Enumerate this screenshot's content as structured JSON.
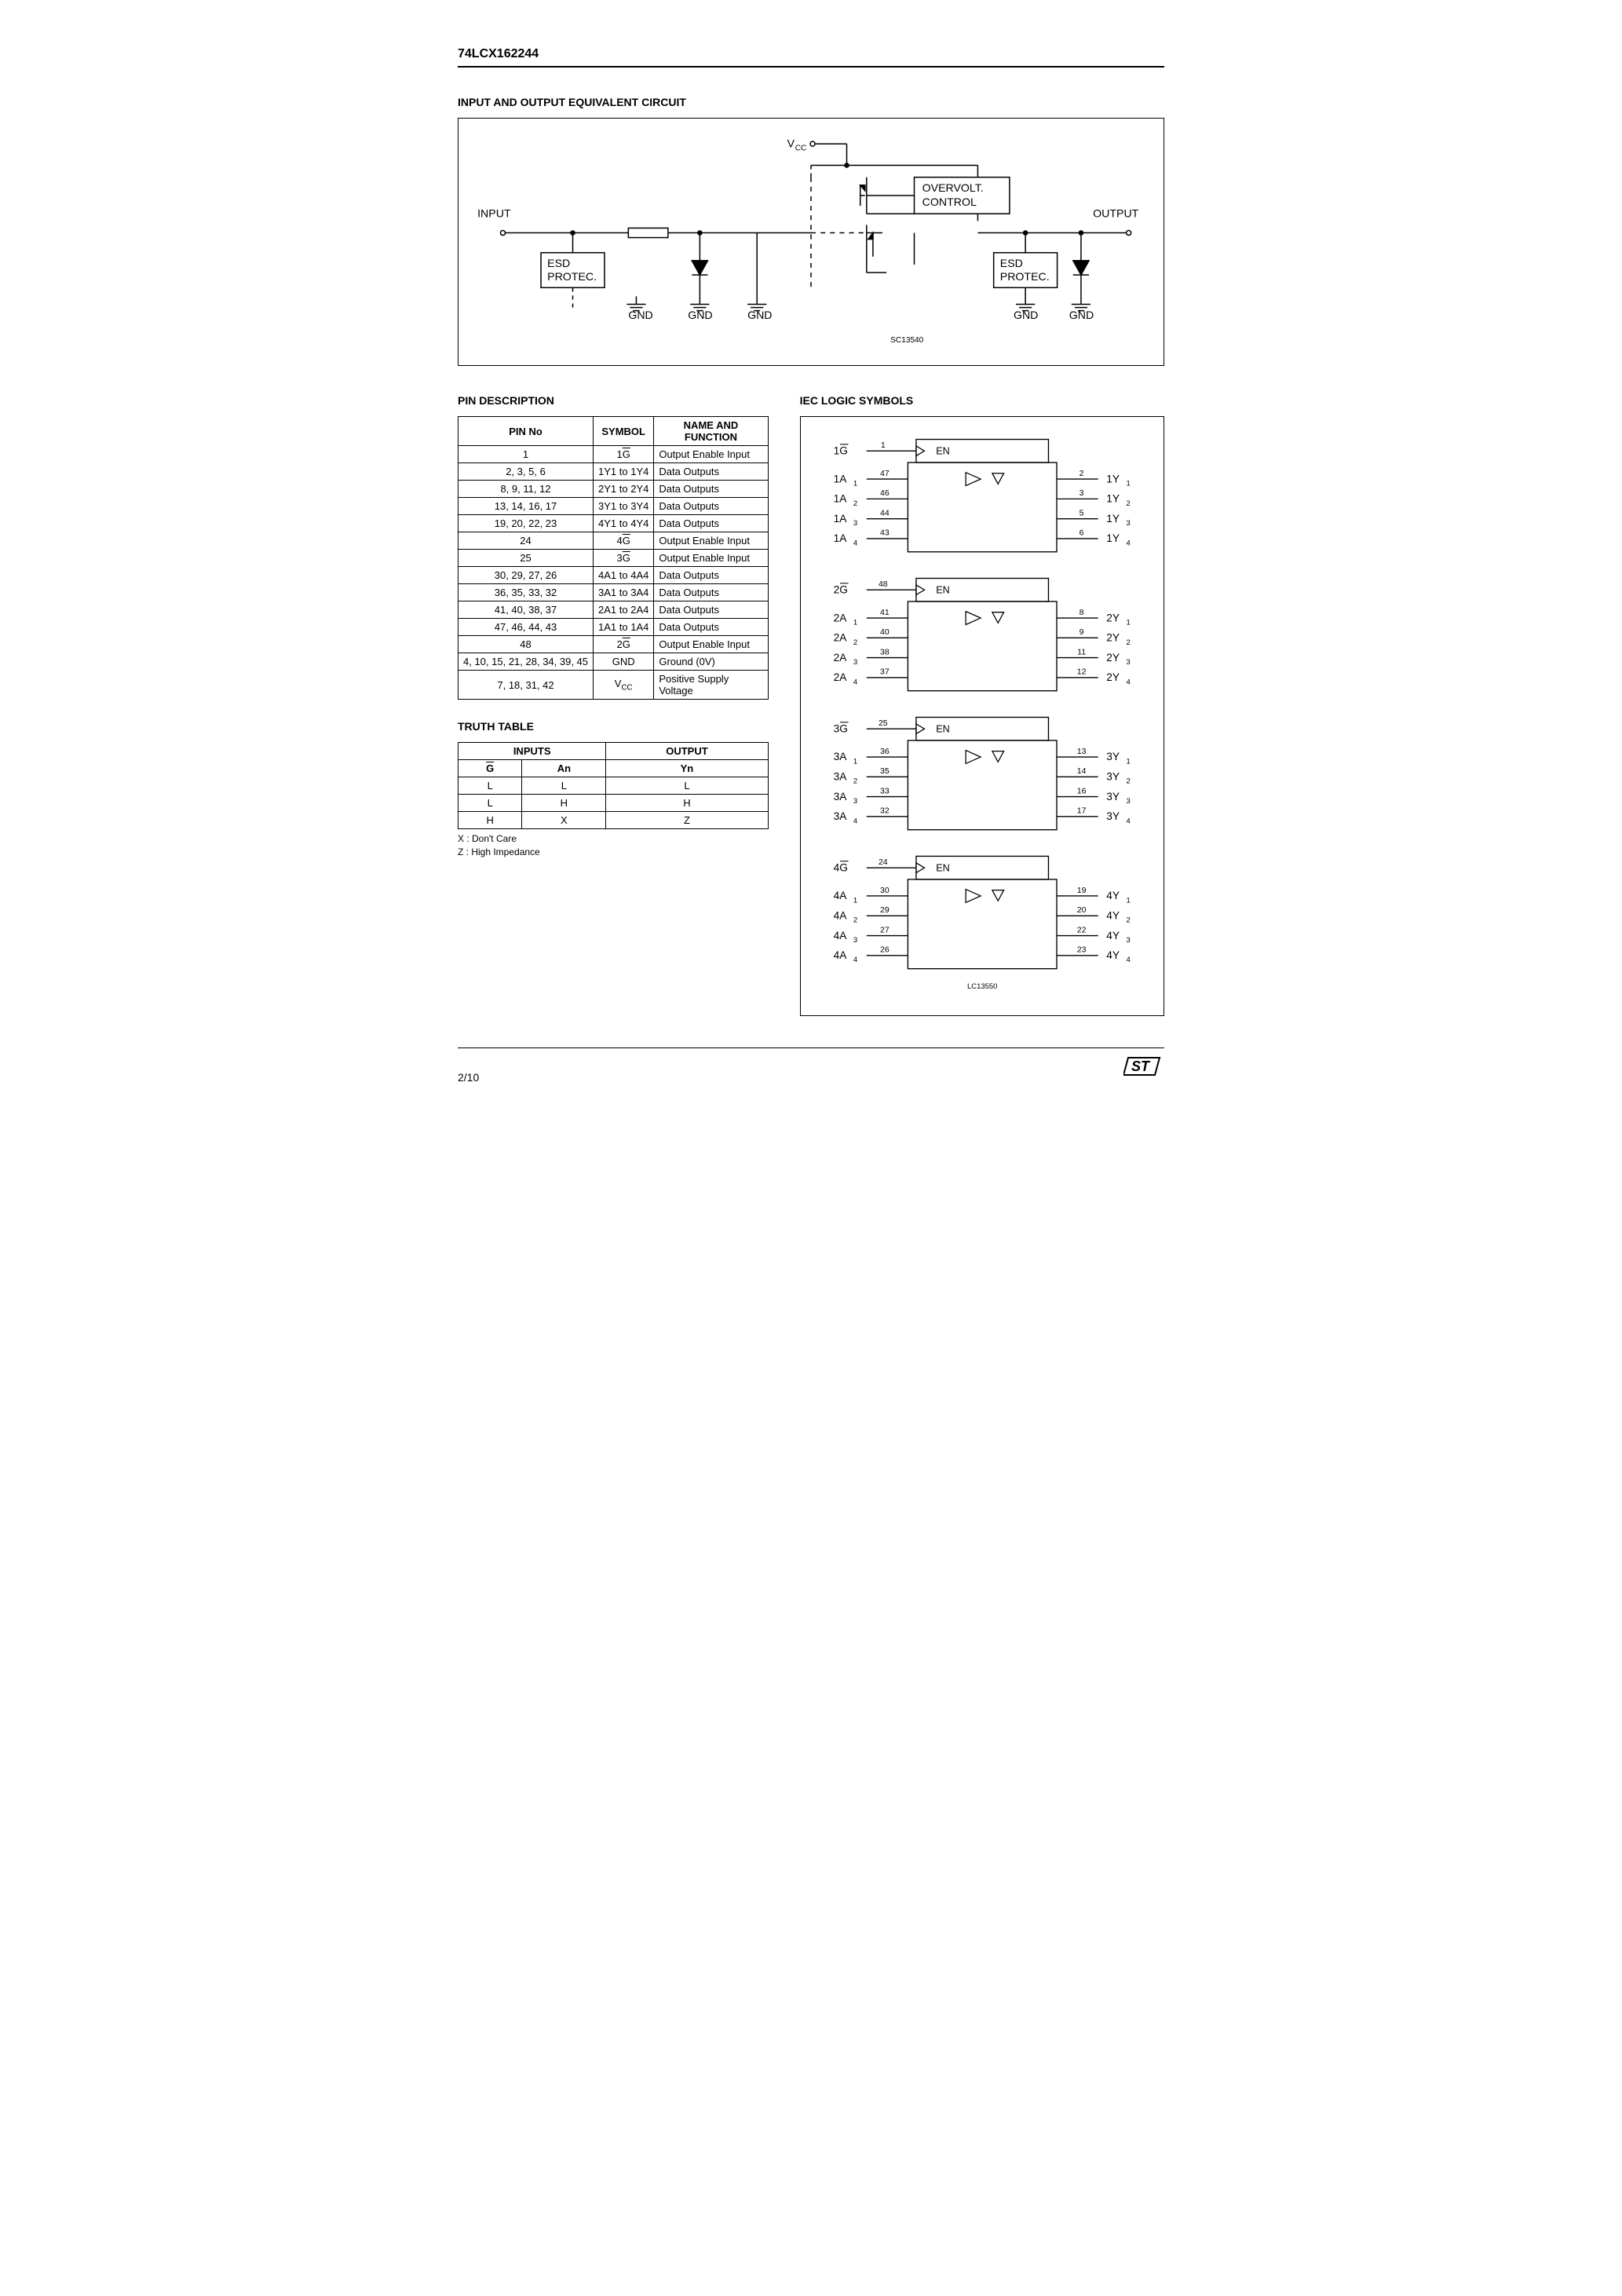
{
  "part_number": "74LCX162244",
  "sections": {
    "circuit": "INPUT AND OUTPUT EQUIVALENT CIRCUIT",
    "pin_desc": "PIN DESCRIPTION",
    "iec": "IEC LOGIC SYMBOLS",
    "truth": "TRUTH TABLE"
  },
  "circuit_labels": {
    "vcc": "V",
    "vcc_sub": "CC",
    "ovc": "OVERVOLT.\nCONTROL",
    "input": "INPUT",
    "output": "OUTPUT",
    "esd": "ESD\nPROTEC.",
    "gnd": "GND",
    "sc": "SC13540"
  },
  "pin_table": {
    "headers": [
      "PIN No",
      "SYMBOL",
      "NAME AND FUNCTION"
    ],
    "rows": [
      {
        "pin": "1",
        "sym_html": "1<span class=\"ovl\">G</span>",
        "func": "Output Enable Input"
      },
      {
        "pin": "2, 3, 5, 6",
        "sym_html": "1Y1 to 1Y4",
        "func": "Data Outputs"
      },
      {
        "pin": "8, 9, 11, 12",
        "sym_html": "2Y1 to 2Y4",
        "func": "Data Outputs"
      },
      {
        "pin": "13, 14, 16, 17",
        "sym_html": "3Y1 to 3Y4",
        "func": "Data Outputs"
      },
      {
        "pin": "19, 20, 22, 23",
        "sym_html": "4Y1 to 4Y4",
        "func": "Data Outputs"
      },
      {
        "pin": "24",
        "sym_html": "4<span class=\"ovl\">G</span>",
        "func": "Output Enable Input"
      },
      {
        "pin": "25",
        "sym_html": "3<span class=\"ovl\">G</span>",
        "func": "Output Enable Input"
      },
      {
        "pin": "30, 29, 27, 26",
        "sym_html": "4A1 to 4A4",
        "func": "Data Outputs"
      },
      {
        "pin": "36, 35, 33, 32",
        "sym_html": "3A1 to 3A4",
        "func": "Data Outputs"
      },
      {
        "pin": "41, 40, 38, 37",
        "sym_html": "2A1 to 2A4",
        "func": "Data Outputs"
      },
      {
        "pin": "47, 46, 44, 43",
        "sym_html": "1A1 to 1A4",
        "func": "Data Outputs"
      },
      {
        "pin": "48",
        "sym_html": "2<span class=\"ovl\">G</span>",
        "func": "Output Enable Input"
      },
      {
        "pin": "4, 10, 15, 21, 28, 34, 39, 45",
        "sym_html": "GND",
        "func": "Ground (0V)"
      },
      {
        "pin": "7, 18, 31, 42",
        "sym_html": "V<sub>CC</sub>",
        "func": "Positive Supply Voltage"
      }
    ]
  },
  "truth_table": {
    "top_headers": [
      "INPUTS",
      "OUTPUT"
    ],
    "sub_headers_html": [
      "<span class=\"ovl\">G</span>",
      "An",
      "Yn"
    ],
    "rows": [
      [
        "L",
        "L",
        "L"
      ],
      [
        "L",
        "H",
        "H"
      ],
      [
        "H",
        "X",
        "Z"
      ]
    ],
    "notes": [
      "X : Don't Care",
      "Z : High Impedance"
    ]
  },
  "iec": {
    "en_label": "EN",
    "lc": "LC13550",
    "blocks": [
      {
        "g_html": "1<span class=\"ovl\">G</span>",
        "g_pin": "1",
        "a": [
          {
            "l": "1A",
            "s": "1",
            "p": "47"
          },
          {
            "l": "1A",
            "s": "2",
            "p": "46"
          },
          {
            "l": "1A",
            "s": "3",
            "p": "44"
          },
          {
            "l": "1A",
            "s": "4",
            "p": "43"
          }
        ],
        "y": [
          {
            "l": "1Y",
            "s": "1",
            "p": "2"
          },
          {
            "l": "1Y",
            "s": "2",
            "p": "3"
          },
          {
            "l": "1Y",
            "s": "3",
            "p": "5"
          },
          {
            "l": "1Y",
            "s": "4",
            "p": "6"
          }
        ]
      },
      {
        "g_html": "2<span class=\"ovl\">G</span>",
        "g_pin": "48",
        "a": [
          {
            "l": "2A",
            "s": "1",
            "p": "41"
          },
          {
            "l": "2A",
            "s": "2",
            "p": "40"
          },
          {
            "l": "2A",
            "s": "3",
            "p": "38"
          },
          {
            "l": "2A",
            "s": "4",
            "p": "37"
          }
        ],
        "y": [
          {
            "l": "2Y",
            "s": "1",
            "p": "8"
          },
          {
            "l": "2Y",
            "s": "2",
            "p": "9"
          },
          {
            "l": "2Y",
            "s": "3",
            "p": "11"
          },
          {
            "l": "2Y",
            "s": "4",
            "p": "12"
          }
        ]
      },
      {
        "g_html": "3<span class=\"ovl\">G</span>",
        "g_pin": "25",
        "a": [
          {
            "l": "3A",
            "s": "1",
            "p": "36"
          },
          {
            "l": "3A",
            "s": "2",
            "p": "35"
          },
          {
            "l": "3A",
            "s": "3",
            "p": "33"
          },
          {
            "l": "3A",
            "s": "4",
            "p": "32"
          }
        ],
        "y": [
          {
            "l": "3Y",
            "s": "1",
            "p": "13"
          },
          {
            "l": "3Y",
            "s": "2",
            "p": "14"
          },
          {
            "l": "3Y",
            "s": "3",
            "p": "16"
          },
          {
            "l": "3Y",
            "s": "4",
            "p": "17"
          }
        ]
      },
      {
        "g_html": "4<span class=\"ovl\">G</span>",
        "g_pin": "24",
        "a": [
          {
            "l": "4A",
            "s": "1",
            "p": "30"
          },
          {
            "l": "4A",
            "s": "2",
            "p": "29"
          },
          {
            "l": "4A",
            "s": "3",
            "p": "27"
          },
          {
            "l": "4A",
            "s": "4",
            "p": "26"
          }
        ],
        "y": [
          {
            "l": "4Y",
            "s": "1",
            "p": "19"
          },
          {
            "l": "4Y",
            "s": "2",
            "p": "20"
          },
          {
            "l": "4Y",
            "s": "3",
            "p": "22"
          },
          {
            "l": "4Y",
            "s": "4",
            "p": "23"
          }
        ]
      }
    ]
  },
  "footer": {
    "page": "2/10",
    "logo": "ST"
  }
}
